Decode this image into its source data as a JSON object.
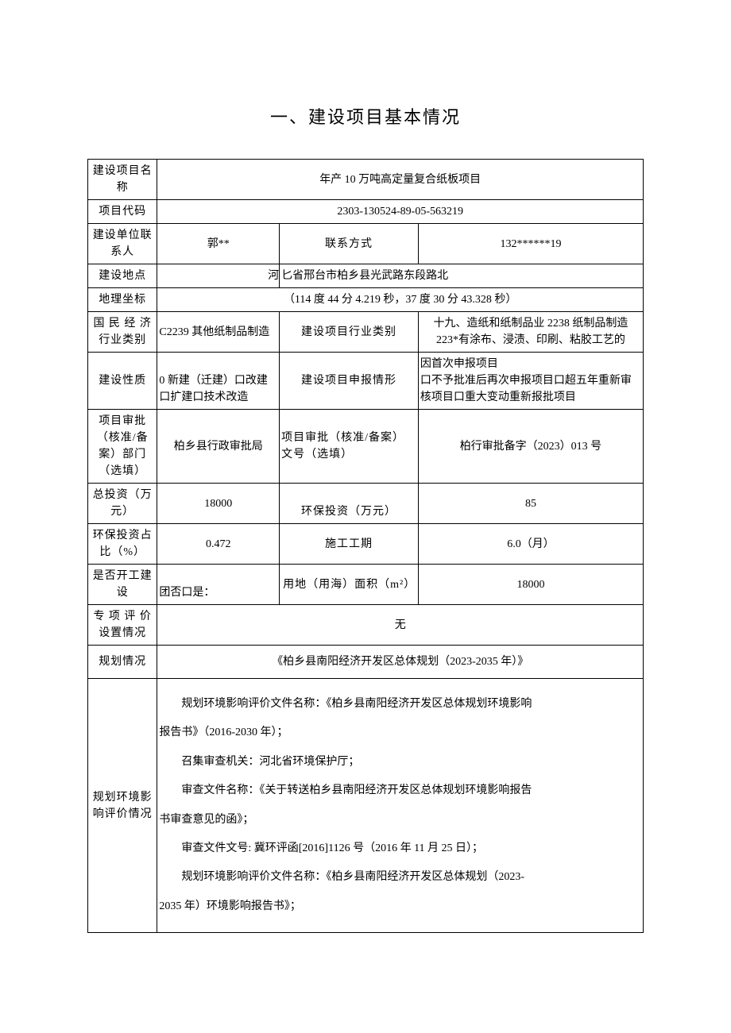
{
  "title": "一、建设项目基本情况",
  "labels": {
    "project_name": "建设项目名称",
    "project_code": "项目代码",
    "contact_person": "建设单位联系人",
    "contact_method": "联系方式",
    "location": "建设地点",
    "coordinates": "地理坐标",
    "economy_category": "国 民 经 济 行业类别",
    "project_category": "建设项目行业类别",
    "nature": "建设性质",
    "declare_situation": "建设项目申报情形",
    "approval_dept": "项目审批（核准/备案）部门（选填）",
    "approval_doc": "项目审批（核准/备案）文号（选填）",
    "total_investment": "总投资（万元）",
    "env_investment": "环保投资（万元）",
    "env_ratio": "环保投资占比（%）",
    "construction_period": "施工工期",
    "is_started": "是否开工建设",
    "land_area": "用地（用海）面积（m²）",
    "special_eval": "专 项 评 价 设置情况",
    "planning": "规划情况",
    "planning_eia": "规划环境影响评价情况"
  },
  "values": {
    "project_name": "年产 10 万吨高定量复合纸板项目",
    "project_code": "2303-130524-89-05-563219",
    "contact_person": "郭**",
    "contact_method": "132******19",
    "location_left": "河",
    "location_right": "匕省邢台市柏乡县光武路东段路北",
    "coordinates": "（114 度 44 分 4.219 秒，37 度 30 分 43.328 秒）",
    "economy_category": "C2239 其他纸制品制造",
    "project_category": "十九、造纸和纸制品业 2238 纸制品制造 223*有涂布、浸渍、印刷、粘胶工艺的",
    "nature": "0 新建（迁建）口改建口扩建口技术改造",
    "declare_situation": "因首次申报项目\n口不予批准后再次申报项目口超五年重新审核项目口重大变动重新报批项目",
    "approval_dept": "柏乡县行政审批局",
    "approval_doc": "柏行审批备字（2023）013 号",
    "total_investment": "18000",
    "env_investment": "85",
    "env_ratio": "0.472",
    "construction_period": "6.0（月）",
    "is_started": "团否口是：",
    "land_area": "18000",
    "special_eval": "无",
    "planning": "《柏乡县南阳经济开发区总体规划（2023-2035 年）》",
    "eia_p1": "规划环境影响评价文件名称：《柏乡县南阳经济开发区总体规划环境影响",
    "eia_p2_noindent": "报告书》（2016-2030 年）；",
    "eia_p3": "召集审查机关：河北省环境保护厅；",
    "eia_p4": "审查文件名称：《关于转送柏乡县南阳经济开发区总体规划环境影响报告",
    "eia_p5_noindent": "书审查意见的函》；",
    "eia_p6": "审查文件文号: 冀环评函[2016]1126 号（2016 年 11 月 25 日）；",
    "eia_p7": "规划环境影响评价文件名称：《柏乡县南阳经济开发区总体规划（2023-",
    "eia_p8_noindent": "2035 年）环境影响报告书》；"
  }
}
